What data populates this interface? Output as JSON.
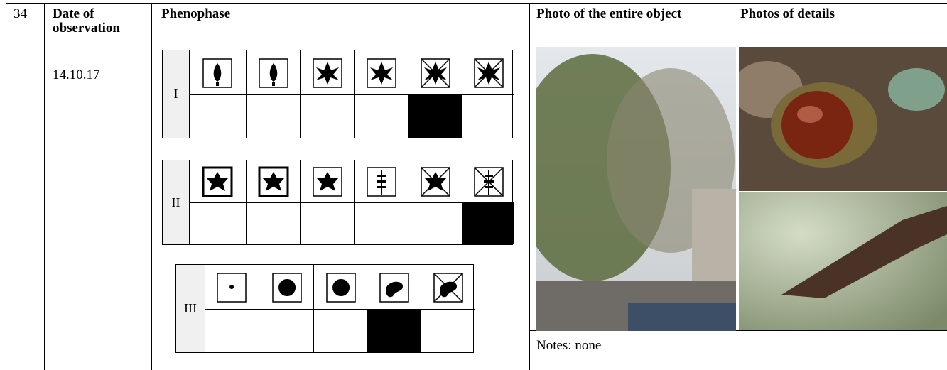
{
  "row": {
    "number": "34",
    "date_header": "Date of observation",
    "date": "14.10.17",
    "phenophase_header": "Phenophase",
    "phases": [
      {
        "label": "I"
      },
      {
        "label": "II"
      },
      {
        "label": "III"
      }
    ],
    "photo_header": "Photo of the entire object",
    "details_header": "Photos of details",
    "notes": "Notes: none"
  }
}
